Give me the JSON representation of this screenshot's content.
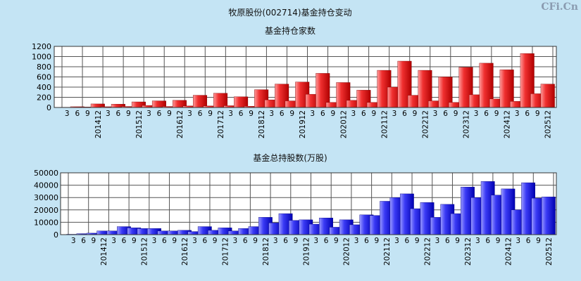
{
  "title": "牧原股份(002714)基金持仓变动",
  "watermark": "CFi.Cn",
  "chart_data": [
    {
      "type": "bar",
      "title": "基金持仓家数",
      "categories": [
        "3",
        "6",
        "9",
        "201412",
        "3",
        "6",
        "9",
        "201512",
        "3",
        "6",
        "9",
        "201612",
        "3",
        "6",
        "9",
        "201712",
        "3",
        "6",
        "9",
        "201812",
        "3",
        "6",
        "9",
        "201912",
        "3",
        "6",
        "9",
        "202012",
        "3",
        "6",
        "9",
        "202112",
        "3",
        "6",
        "9",
        "202212",
        "3",
        "6",
        "9",
        "202312",
        "3",
        "6",
        "9",
        "202412",
        "3",
        "6",
        "9",
        "202512"
      ],
      "values": [
        5,
        15,
        10,
        70,
        15,
        65,
        20,
        110,
        40,
        130,
        20,
        140,
        30,
        240,
        30,
        280,
        35,
        210,
        25,
        350,
        150,
        460,
        130,
        500,
        260,
        670,
        100,
        490,
        140,
        340,
        100,
        730,
        400,
        910,
        240,
        730,
        130,
        600,
        100,
        790,
        250,
        870,
        170,
        740,
        120,
        1060,
        270,
        460
      ],
      "ylim": [
        0,
        1200
      ],
      "yticks": [
        0,
        200,
        400,
        600,
        800,
        1000,
        1200
      ],
      "grid": true,
      "bar_color": "#f03030"
    },
    {
      "type": "bar",
      "title": "基金总持股数(万股)",
      "categories": [
        "3",
        "6",
        "9",
        "201412",
        "3",
        "6",
        "9",
        "201512",
        "3",
        "6",
        "9",
        "201612",
        "3",
        "6",
        "9",
        "201712",
        "3",
        "6",
        "9",
        "201812",
        "3",
        "6",
        "9",
        "201912",
        "3",
        "6",
        "9",
        "202012",
        "3",
        "6",
        "9",
        "202112",
        "3",
        "6",
        "9",
        "202212",
        "3",
        "6",
        "9",
        "202312",
        "3",
        "6",
        "9",
        "202412",
        "3",
        "6",
        "9",
        "202512"
      ],
      "values": [
        300,
        800,
        1200,
        3000,
        3000,
        6500,
        5500,
        5000,
        5000,
        3000,
        3000,
        3500,
        2500,
        6500,
        3500,
        5500,
        3000,
        5000,
        6500,
        14000,
        9500,
        17000,
        11500,
        12000,
        8500,
        13500,
        6000,
        12000,
        8000,
        16000,
        15500,
        27000,
        30000,
        33000,
        21000,
        26000,
        14000,
        24500,
        17000,
        38500,
        30000,
        43000,
        32000,
        37000,
        20000,
        42000,
        29500,
        30500
      ],
      "ylim": [
        0,
        50000
      ],
      "yticks": [
        0,
        10000,
        20000,
        30000,
        40000,
        50000
      ],
      "grid": true,
      "bar_color": "#3a3af5"
    }
  ]
}
